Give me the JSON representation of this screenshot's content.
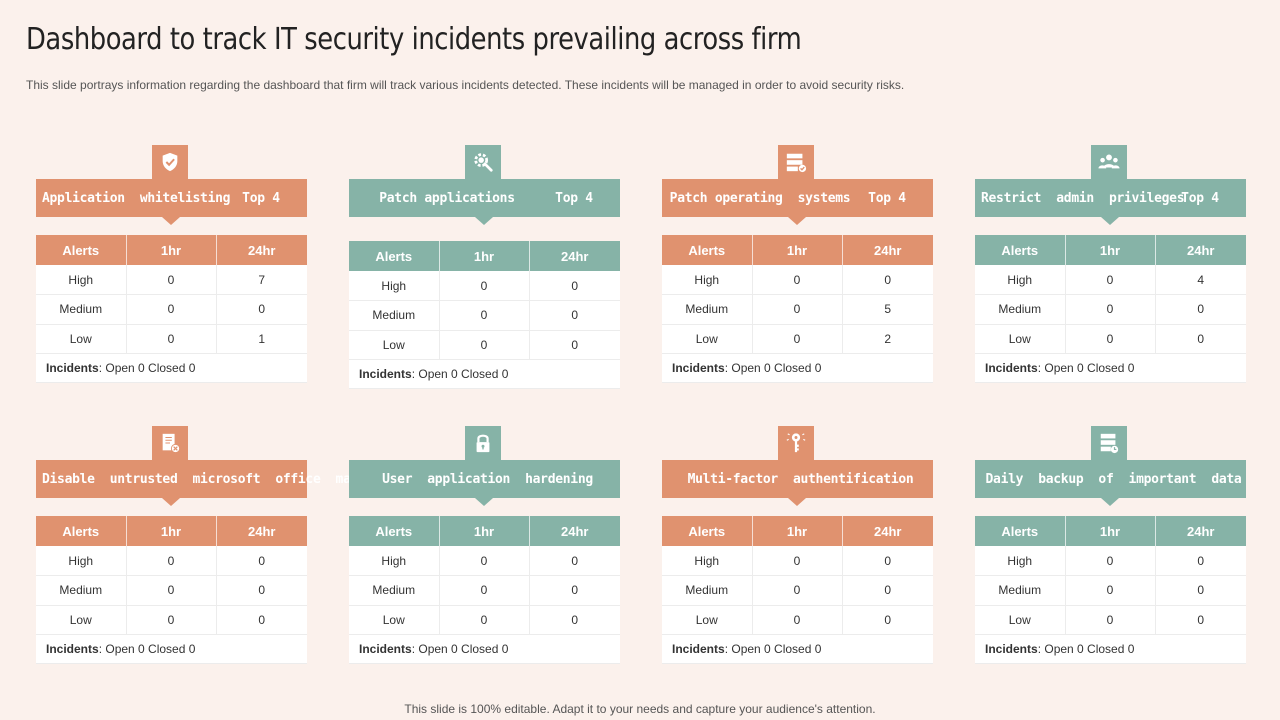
{
  "title": "Dashboard to track IT security incidents prevailing across firm",
  "subtitle": "This slide portrays information regarding the dashboard that firm will track various incidents detected. These incidents will be managed in order to avoid security risks.",
  "footer": "This slide is 100% editable. Adapt it to your needs and capture your audience's attention.",
  "colors": {
    "orange": "#e0926f",
    "teal": "#86b3a7",
    "background": "#fbf1ec"
  },
  "table_headers": [
    "Alerts",
    "1hr",
    "24hr"
  ],
  "incidents_label": "Incidents",
  "cards": [
    {
      "name": "Application  whitelisting",
      "top": "Top 4",
      "icon": "shield-check-icon",
      "theme": "orange",
      "rows": [
        [
          "High",
          "0",
          "7"
        ],
        [
          "Medium",
          "0",
          "0"
        ],
        [
          "Low",
          "0",
          "1"
        ]
      ],
      "incidents": ": Open 0 Closed 0"
    },
    {
      "name": "Patch applications",
      "top": "Top 4",
      "icon": "gear-search-icon",
      "theme": "teal",
      "rows": [
        [
          "High",
          "0",
          "0"
        ],
        [
          "Medium",
          "0",
          "0"
        ],
        [
          "Low",
          "0",
          "0"
        ]
      ],
      "incidents": ": Open 0 Closed 0"
    },
    {
      "name": "Patch operating  systems",
      "top": "Top 4",
      "icon": "server-check-icon",
      "theme": "orange",
      "rows": [
        [
          "High",
          "0",
          "0"
        ],
        [
          "Medium",
          "0",
          "5"
        ],
        [
          "Low",
          "0",
          "2"
        ]
      ],
      "incidents": ": Open 0 Closed 0"
    },
    {
      "name": "Restrict  admin  privileges",
      "top": "Top 4",
      "icon": "users-icon",
      "theme": "teal",
      "rows": [
        [
          "High",
          "0",
          "4"
        ],
        [
          "Medium",
          "0",
          "0"
        ],
        [
          "Low",
          "0",
          "0"
        ]
      ],
      "incidents": ": Open 0 Closed 0"
    },
    {
      "name": "Disable  untrusted  microsoft  office  macros",
      "top": "",
      "icon": "document-x-icon",
      "theme": "orange",
      "rows": [
        [
          "High",
          "0",
          "0"
        ],
        [
          "Medium",
          "0",
          "0"
        ],
        [
          "Low",
          "0",
          "0"
        ]
      ],
      "incidents": ": Open 0 Closed 0"
    },
    {
      "name": "User  application  hardening",
      "top": "",
      "icon": "lock-icon",
      "theme": "teal",
      "rows": [
        [
          "High",
          "0",
          "0"
        ],
        [
          "Medium",
          "0",
          "0"
        ],
        [
          "Low",
          "0",
          "0"
        ]
      ],
      "incidents": ": Open 0 Closed 0"
    },
    {
      "name": "Multi-factor  authentification",
      "top": "",
      "icon": "key-icon",
      "theme": "orange",
      "rows": [
        [
          "High",
          "0",
          "0"
        ],
        [
          "Medium",
          "0",
          "0"
        ],
        [
          "Low",
          "0",
          "0"
        ]
      ],
      "incidents": ": Open 0 Closed 0"
    },
    {
      "name": "Daily  backup  of  important  data",
      "top": "",
      "icon": "database-backup-icon",
      "theme": "teal",
      "rows": [
        [
          "High",
          "0",
          "0"
        ],
        [
          "Medium",
          "0",
          "0"
        ],
        [
          "Low",
          "0",
          "0"
        ]
      ],
      "incidents": ": Open 0 Closed 0"
    }
  ]
}
